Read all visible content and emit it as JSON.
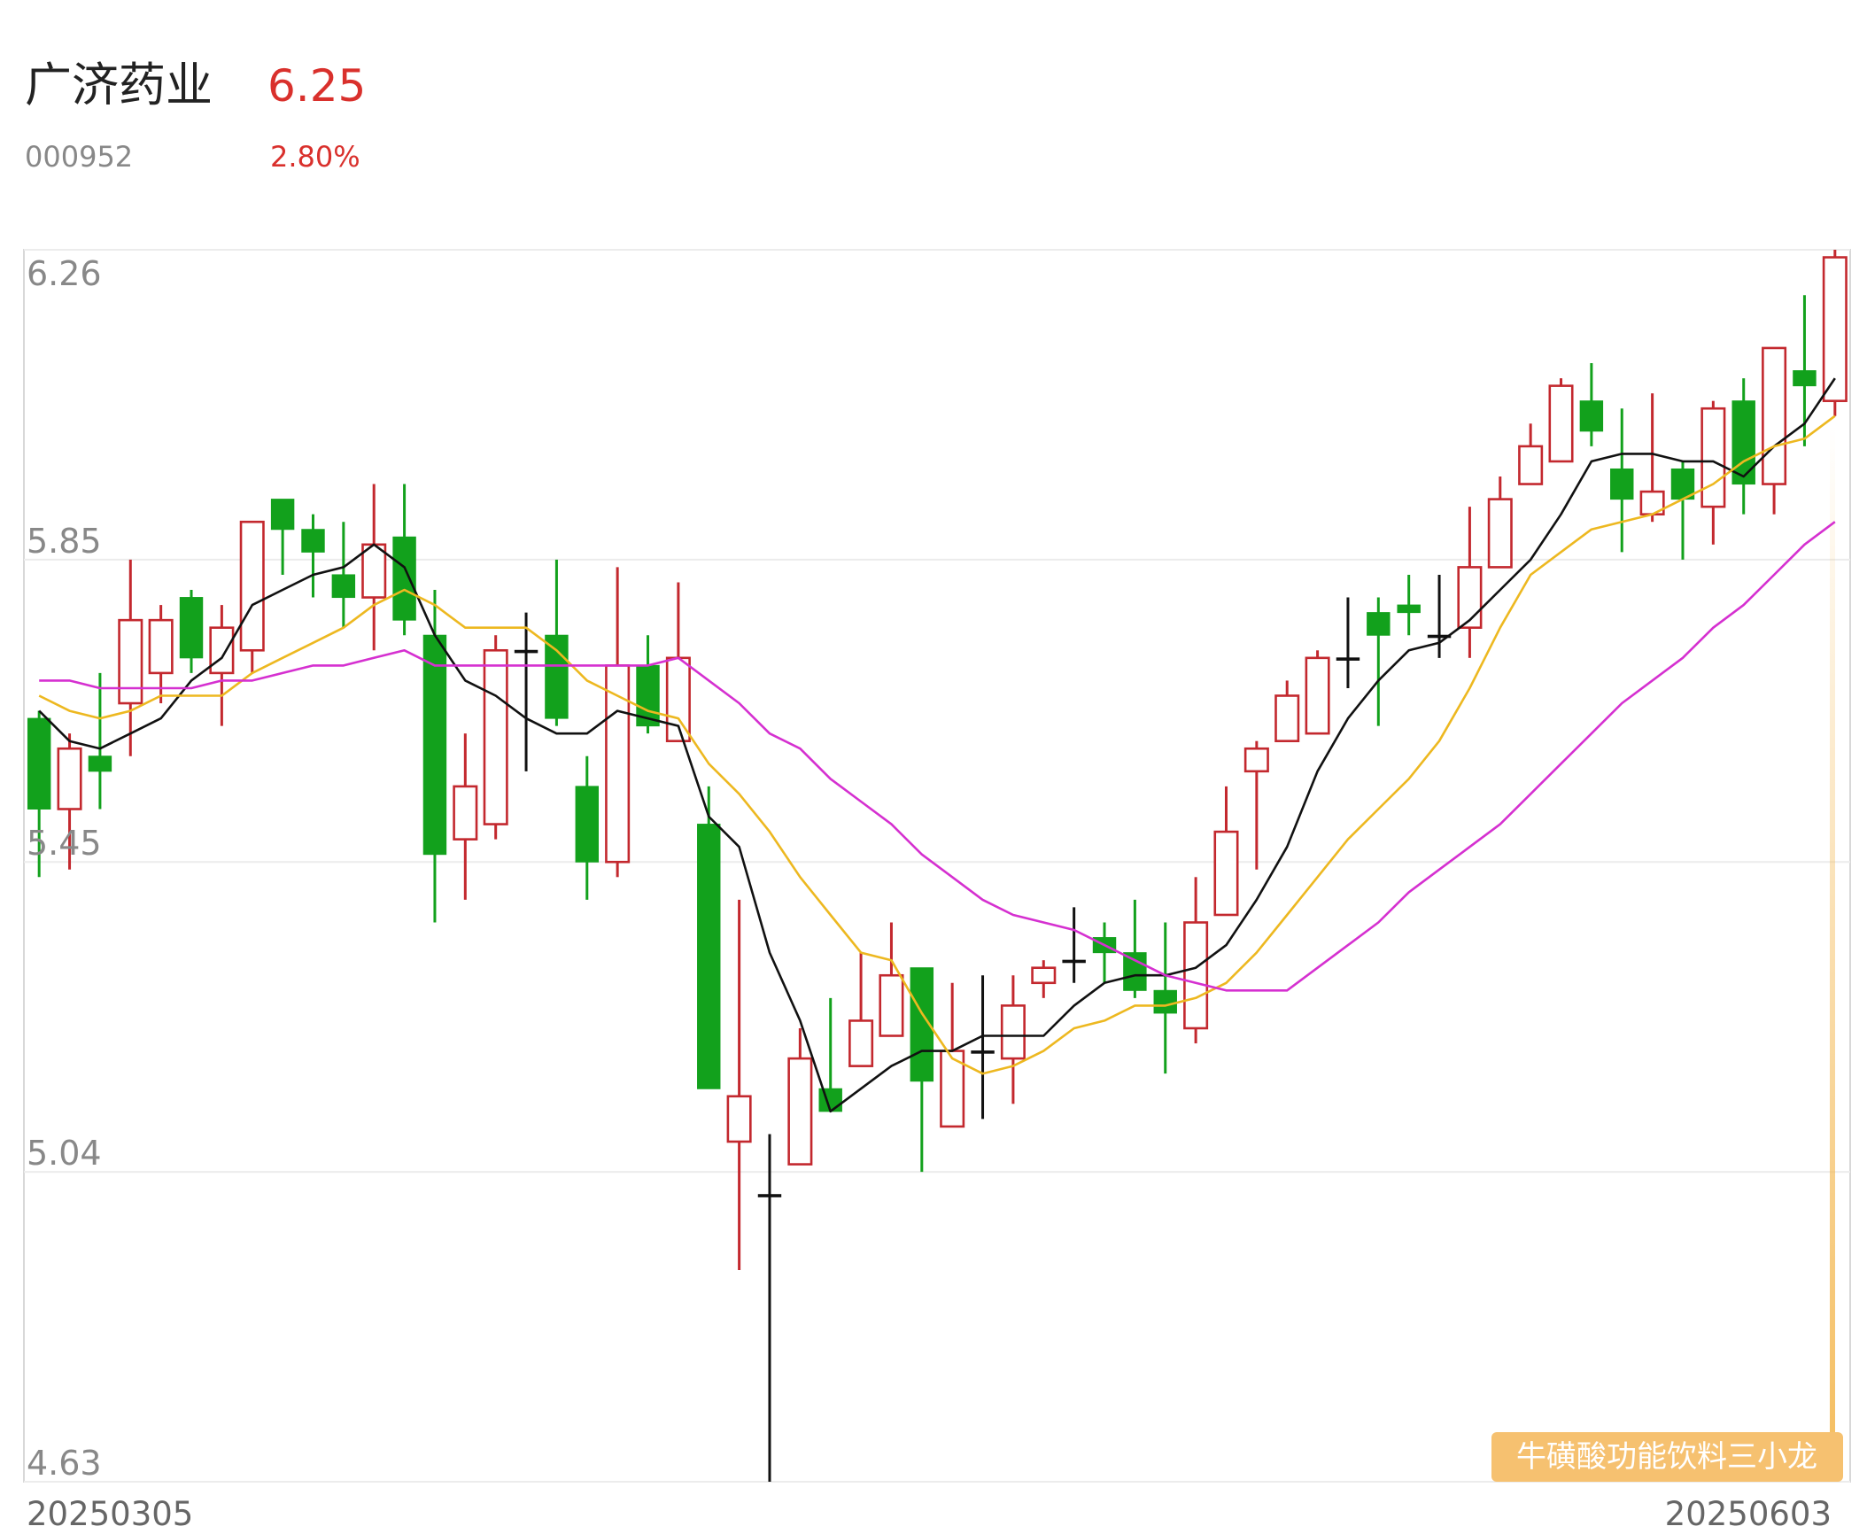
{
  "header": {
    "name": "广济药业",
    "price": "6.25",
    "code": "000952",
    "change": "2.80%"
  },
  "watermark": "牛磺酸功能饮料三小龙",
  "chart_data": {
    "type": "candlestick",
    "categories": [
      "20250305",
      null,
      null,
      null,
      null,
      null,
      null,
      null,
      null,
      null,
      null,
      null,
      null,
      null,
      null,
      null,
      null,
      null,
      null,
      null,
      null,
      null,
      null,
      null,
      null,
      null,
      null,
      null,
      null,
      null,
      null,
      null,
      null,
      null,
      null,
      null,
      null,
      null,
      null,
      null,
      null,
      null,
      null,
      null,
      null,
      null,
      null,
      null,
      null,
      null,
      null,
      null,
      null,
      null,
      null,
      null,
      null,
      null,
      null,
      "20250603"
    ],
    "open": [
      5.64,
      5.52,
      5.59,
      5.66,
      5.7,
      5.8,
      5.7,
      5.73,
      5.93,
      5.89,
      5.83,
      5.8,
      5.88,
      5.75,
      5.48,
      5.5,
      5.73,
      5.75,
      5.55,
      5.45,
      5.71,
      5.61,
      5.5,
      5.08,
      5.01,
      5.05,
      5.15,
      5.18,
      5.22,
      5.31,
      5.1,
      5.2,
      5.19,
      5.29,
      5.32,
      5.35,
      5.33,
      5.28,
      5.23,
      5.38,
      5.57,
      5.61,
      5.62,
      5.72,
      5.78,
      5.79,
      5.75,
      5.76,
      5.84,
      5.95,
      5.98,
      6.06,
      5.97,
      5.91,
      5.97,
      5.92,
      6.06,
      5.95,
      6.1,
      6.06
    ],
    "high": [
      5.65,
      5.62,
      5.7,
      5.85,
      5.79,
      5.81,
      5.79,
      5.9,
      5.93,
      5.91,
      5.9,
      5.95,
      5.95,
      5.81,
      5.62,
      5.75,
      5.78,
      5.85,
      5.59,
      5.84,
      5.75,
      5.82,
      5.55,
      5.4,
      5.09,
      5.23,
      5.27,
      5.33,
      5.37,
      5.31,
      5.29,
      5.3,
      5.3,
      5.32,
      5.39,
      5.37,
      5.4,
      5.37,
      5.43,
      5.55,
      5.61,
      5.69,
      5.73,
      5.8,
      5.8,
      5.83,
      5.83,
      5.92,
      5.96,
      6.03,
      6.09,
      6.11,
      6.05,
      6.07,
      5.98,
      6.06,
      6.09,
      6.13,
      6.2,
      6.26
    ],
    "low": [
      5.43,
      5.44,
      5.52,
      5.59,
      5.66,
      5.7,
      5.63,
      5.7,
      5.83,
      5.8,
      5.76,
      5.73,
      5.75,
      5.37,
      5.4,
      5.48,
      5.57,
      5.63,
      5.4,
      5.43,
      5.62,
      5.61,
      5.15,
      4.91,
      4.63,
      5.05,
      5.12,
      5.18,
      5.22,
      5.04,
      5.1,
      5.11,
      5.13,
      5.27,
      5.29,
      5.29,
      5.27,
      5.17,
      5.21,
      5.38,
      5.44,
      5.61,
      5.62,
      5.68,
      5.63,
      5.75,
      5.72,
      5.72,
      5.84,
      5.95,
      5.98,
      6.0,
      5.86,
      5.9,
      5.85,
      5.87,
      5.91,
      5.91,
      6.0,
      6.04
    ],
    "close": [
      5.52,
      5.6,
      5.57,
      5.77,
      5.77,
      5.72,
      5.76,
      5.9,
      5.89,
      5.86,
      5.8,
      5.87,
      5.77,
      5.46,
      5.55,
      5.73,
      5.73,
      5.64,
      5.45,
      5.71,
      5.63,
      5.72,
      5.15,
      5.14,
      5.01,
      5.19,
      5.12,
      5.24,
      5.3,
      5.16,
      5.2,
      5.2,
      5.26,
      5.31,
      5.32,
      5.33,
      5.28,
      5.25,
      5.37,
      5.49,
      5.6,
      5.67,
      5.72,
      5.72,
      5.75,
      5.78,
      5.75,
      5.84,
      5.93,
      6.0,
      6.08,
      6.02,
      5.93,
      5.94,
      5.93,
      6.05,
      5.95,
      6.13,
      6.08,
      6.25
    ],
    "up_color": "#c3282e",
    "down_color": "#12a11c",
    "doji_color": "#111111",
    "lines": [
      {
        "color": "#111111",
        "values": [
          5.65,
          5.61,
          5.6,
          5.62,
          5.64,
          5.69,
          5.72,
          5.79,
          5.81,
          5.83,
          5.84,
          5.87,
          5.84,
          5.75,
          5.69,
          5.67,
          5.64,
          5.62,
          5.62,
          5.65,
          5.64,
          5.63,
          5.51,
          5.47,
          5.33,
          5.24,
          5.12,
          5.15,
          5.18,
          5.2,
          5.2,
          5.22,
          5.22,
          5.22,
          5.26,
          5.29,
          5.3,
          5.3,
          5.31,
          5.34,
          5.4,
          5.47,
          5.57,
          5.64,
          5.69,
          5.73,
          5.74,
          5.77,
          5.81,
          5.85,
          5.91,
          5.98,
          5.99,
          5.99,
          5.98,
          5.98,
          5.96,
          6.0,
          6.03,
          6.09
        ]
      },
      {
        "color": "#edb820",
        "values": [
          5.67,
          5.65,
          5.64,
          5.65,
          5.67,
          5.67,
          5.67,
          5.7,
          5.72,
          5.74,
          5.76,
          5.79,
          5.81,
          5.79,
          5.76,
          5.76,
          5.76,
          5.73,
          5.69,
          5.67,
          5.65,
          5.64,
          5.58,
          5.54,
          5.49,
          5.43,
          5.38,
          5.33,
          5.32,
          5.25,
          5.19,
          5.17,
          5.18,
          5.2,
          5.23,
          5.24,
          5.26,
          5.26,
          5.27,
          5.29,
          5.33,
          5.38,
          5.43,
          5.48,
          5.52,
          5.56,
          5.61,
          5.68,
          5.76,
          5.83,
          5.86,
          5.89,
          5.9,
          5.91,
          5.93,
          5.95,
          5.98,
          6.0,
          6.01,
          6.04
        ]
      },
      {
        "color": "#d530d0",
        "values": [
          5.69,
          5.69,
          5.68,
          5.68,
          5.68,
          5.68,
          5.69,
          5.69,
          5.7,
          5.71,
          5.71,
          5.72,
          5.73,
          5.71,
          5.71,
          5.71,
          5.71,
          5.71,
          5.71,
          5.71,
          5.71,
          5.72,
          5.69,
          5.66,
          5.62,
          5.6,
          5.56,
          5.53,
          5.5,
          5.46,
          5.43,
          5.4,
          5.38,
          5.37,
          5.36,
          5.34,
          5.32,
          5.3,
          5.29,
          5.28,
          5.28,
          5.28,
          5.31,
          5.34,
          5.37,
          5.41,
          5.44,
          5.47,
          5.5,
          5.54,
          5.58,
          5.62,
          5.66,
          5.69,
          5.72,
          5.76,
          5.79,
          5.83,
          5.87,
          5.9
        ]
      }
    ],
    "ylim": [
      4.63,
      6.26
    ],
    "yticks": [
      6.26,
      5.85,
      5.45,
      5.04,
      4.63
    ],
    "grid": true
  }
}
